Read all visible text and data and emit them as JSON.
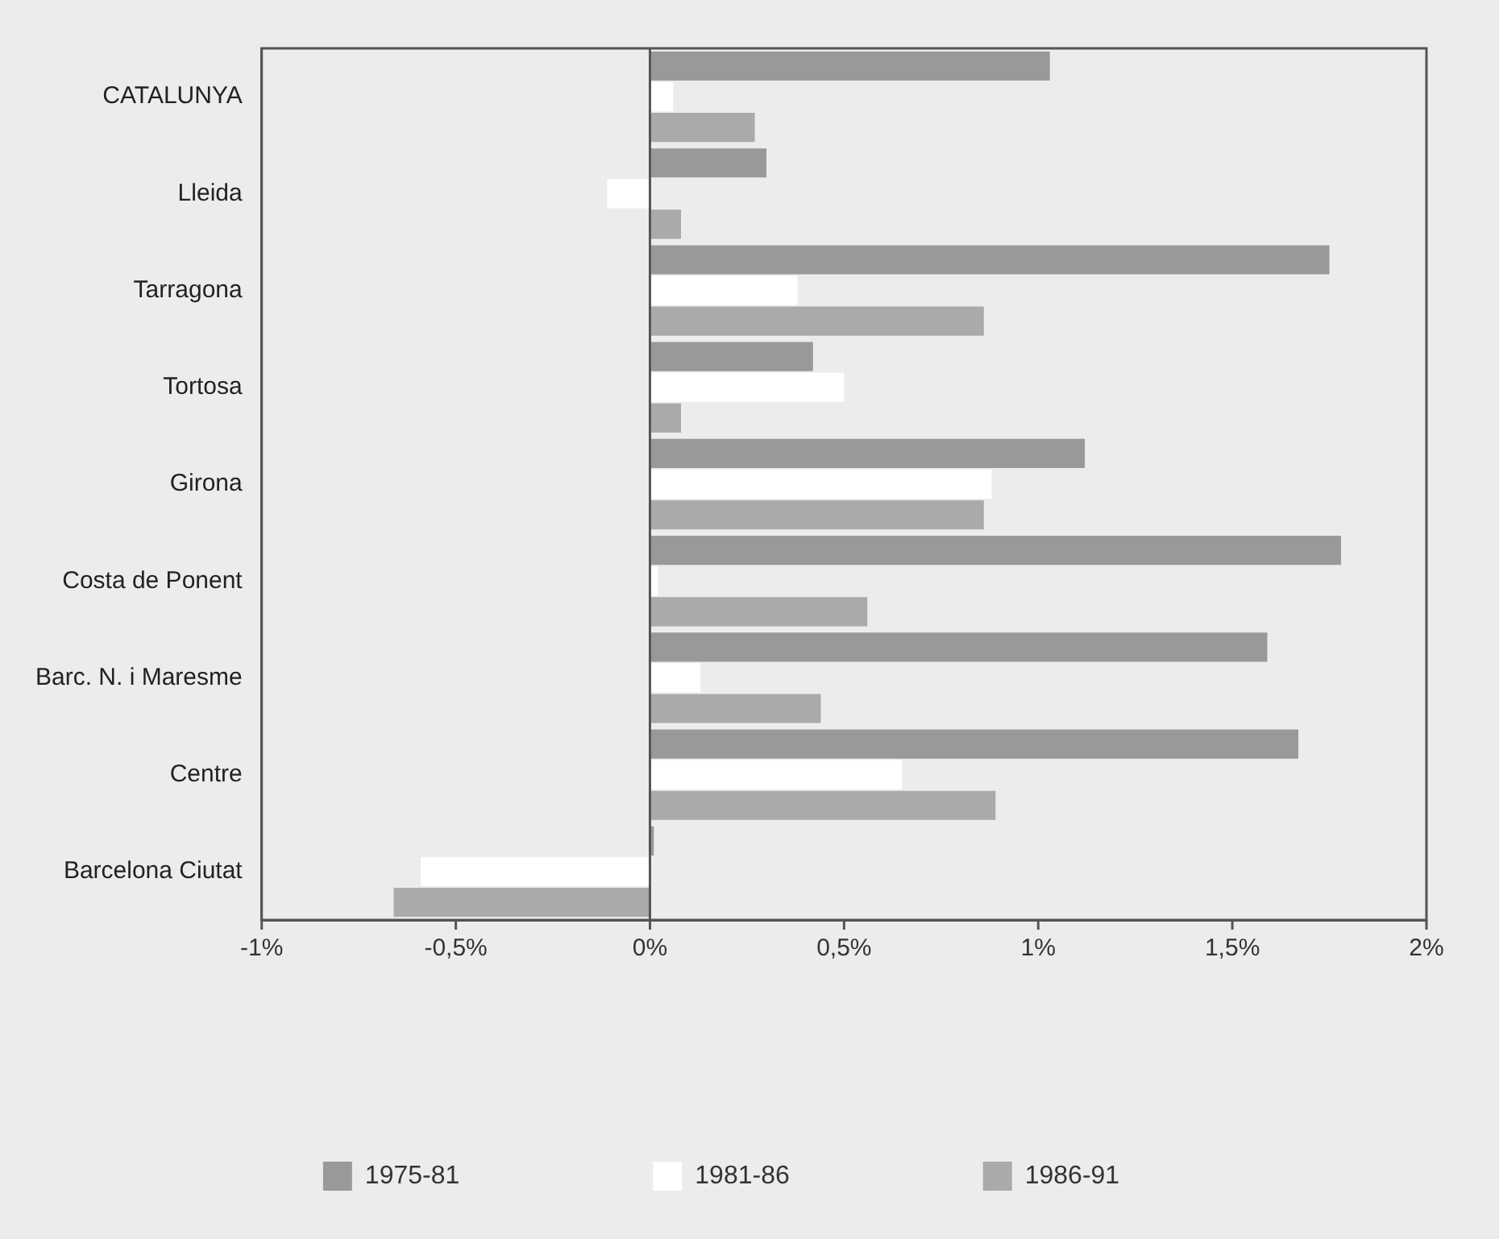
{
  "chart_data": {
    "type": "bar",
    "orientation": "horizontal",
    "categories": [
      "CATALUNYA",
      "Lleida",
      "Tarragona",
      "Tortosa",
      "Girona",
      "Costa de Ponent",
      "Barc. N. i Maresme",
      "Centre",
      "Barcelona Ciutat"
    ],
    "series": [
      {
        "name": "1975-81",
        "color": "#999999",
        "values": [
          1.03,
          0.3,
          1.75,
          0.42,
          1.12,
          1.78,
          1.59,
          1.67,
          0.01
        ]
      },
      {
        "name": "1981-86",
        "color": "#ffffff",
        "values": [
          0.06,
          -0.11,
          0.38,
          0.5,
          0.88,
          0.02,
          0.13,
          0.65,
          -0.59
        ]
      },
      {
        "name": "1986-91",
        "color": "#aaaaaa",
        "values": [
          0.27,
          0.08,
          0.86,
          0.08,
          0.86,
          0.56,
          0.44,
          0.89,
          -0.66
        ]
      }
    ],
    "xlim": [
      -1,
      2
    ],
    "xticks": [
      {
        "value": -1,
        "label": "-1%"
      },
      {
        "value": -0.5,
        "label": "-0,5%"
      },
      {
        "value": 0,
        "label": "0%"
      },
      {
        "value": 0.5,
        "label": "0,5%"
      },
      {
        "value": 1,
        "label": "1%"
      },
      {
        "value": 1.5,
        "label": "1,5%"
      },
      {
        "value": 2,
        "label": "2%"
      }
    ],
    "ref_lines": [
      {
        "axis": "x",
        "value": 0
      }
    ],
    "legend": "bottom"
  }
}
